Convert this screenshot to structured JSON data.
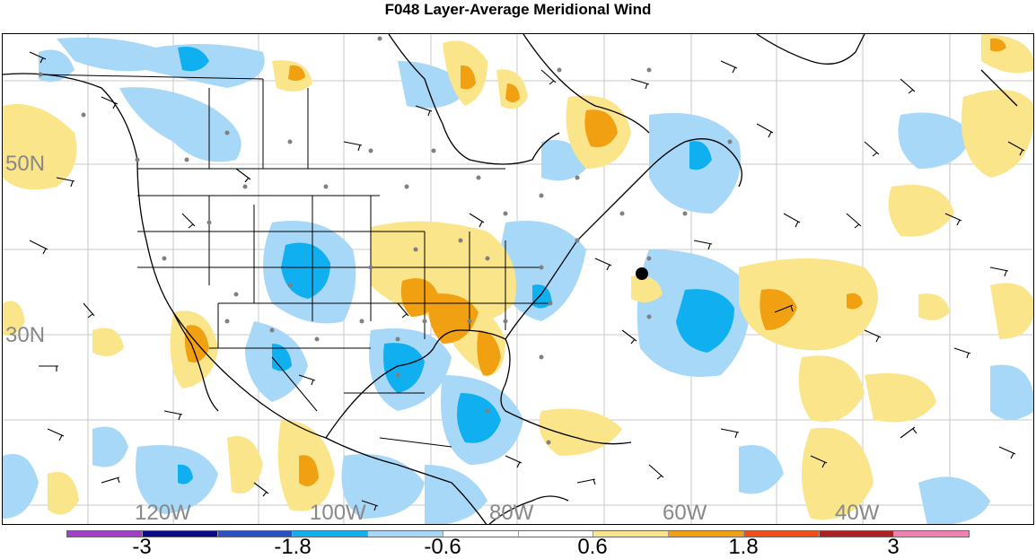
{
  "title": "F048 Layer-Average Meridional Wind",
  "latitude_labels": [
    "50N",
    "30N"
  ],
  "longitude_labels": [
    "120W",
    "100W",
    "80W",
    "60W",
    "40W"
  ],
  "colorbar": {
    "colors": [
      "#a040c8",
      "#0a0a8a",
      "#2a50c8",
      "#10b0f0",
      "#a8d8f8",
      "#ffffff",
      "#ffffff",
      "#fbe58a",
      "#f0a010",
      "#f05018",
      "#b02020",
      "#f080b0"
    ],
    "tick_labels": [
      "-3",
      "-1.8",
      "-0.6",
      "0.6",
      "1.8",
      "3"
    ]
  },
  "legend_palette": {
    "light_blue": "#a8d8f8",
    "blue": "#10b0f0",
    "light_yellow": "#fbe58a",
    "orange": "#f0a010"
  }
}
